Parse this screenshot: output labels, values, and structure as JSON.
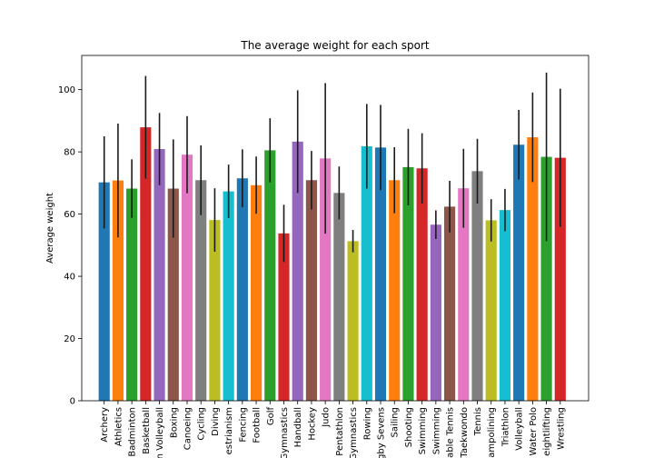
{
  "chart_data": {
    "type": "bar",
    "title": "The average weight for each sport",
    "xlabel": "",
    "ylabel": "Average weight",
    "ylim": [
      0,
      111
    ],
    "yticks": [
      0,
      20,
      40,
      60,
      80,
      100
    ],
    "grid": false,
    "legend": "none",
    "categories": [
      "Archery",
      "Athletics",
      "Badminton",
      "Basketball",
      "Beach Volleyball",
      "Boxing",
      "Canoeing",
      "Cycling",
      "Diving",
      "Equestrianism",
      "Fencing",
      "Football",
      "Golf",
      "Gymnastics",
      "Handball",
      "Hockey",
      "Judo",
      "Modern Pentathlon",
      "Rhythmic Gymnastics",
      "Rowing",
      "Rugby Sevens",
      "Sailing",
      "Shooting",
      "Swimming",
      "Synchronized Swimming",
      "Table Tennis",
      "Taekwondo",
      "Tennis",
      "Trampolining",
      "Triathlon",
      "Volleyball",
      "Water Polo",
      "Weightlifting",
      "Wrestling"
    ],
    "tick_labels": [
      "Archery",
      "Athletics",
      "Badminton",
      "Basketball",
      "n Volleyball",
      "Boxing",
      "Canoeing",
      "Cycling",
      "Diving",
      "estrianism",
      "Fencing",
      "Football",
      "Golf",
      "Gymnastics",
      "Handball",
      "Hockey",
      "Judo",
      "Pentathlon",
      "Gymnastics",
      "Rowing",
      "gby Sevens",
      "Sailing",
      "Shooting",
      "Swimming",
      "Swimming",
      "able Tennis",
      "Taekwondo",
      "Tennis",
      "ampolining",
      "Triathlon",
      "Volleyball",
      "Water Polo",
      "eightlifting",
      "Wrestling"
    ],
    "values": [
      70.2,
      70.8,
      68.2,
      87.9,
      80.9,
      68.2,
      79.1,
      70.9,
      58.1,
      67.3,
      71.5,
      69.3,
      80.5,
      53.8,
      83.3,
      70.9,
      77.9,
      66.8,
      51.3,
      81.8,
      81.4,
      70.9,
      75.1,
      74.7,
      56.6,
      62.4,
      68.3,
      73.8,
      58.0,
      61.3,
      82.3,
      84.7,
      78.4,
      78.1
    ],
    "errors": [
      14.8,
      18.3,
      9.4,
      16.5,
      11.6,
      15.8,
      12.4,
      11.2,
      10.2,
      8.6,
      9.3,
      9.2,
      10.3,
      9.2,
      16.5,
      9.4,
      24.2,
      8.5,
      3.6,
      13.6,
      13.7,
      10.6,
      12.3,
      11.3,
      4.6,
      8.3,
      12.7,
      10.4,
      6.8,
      6.8,
      11.2,
      14.4,
      27.1,
      22.2
    ],
    "colors": [
      "#1f77b4",
      "#ff7f0e",
      "#2ca02c",
      "#d62728",
      "#9467bd",
      "#8c564b",
      "#e377c2",
      "#7f7f7f",
      "#bcbd22",
      "#17becf"
    ],
    "error_color": "#1a1a1a"
  }
}
